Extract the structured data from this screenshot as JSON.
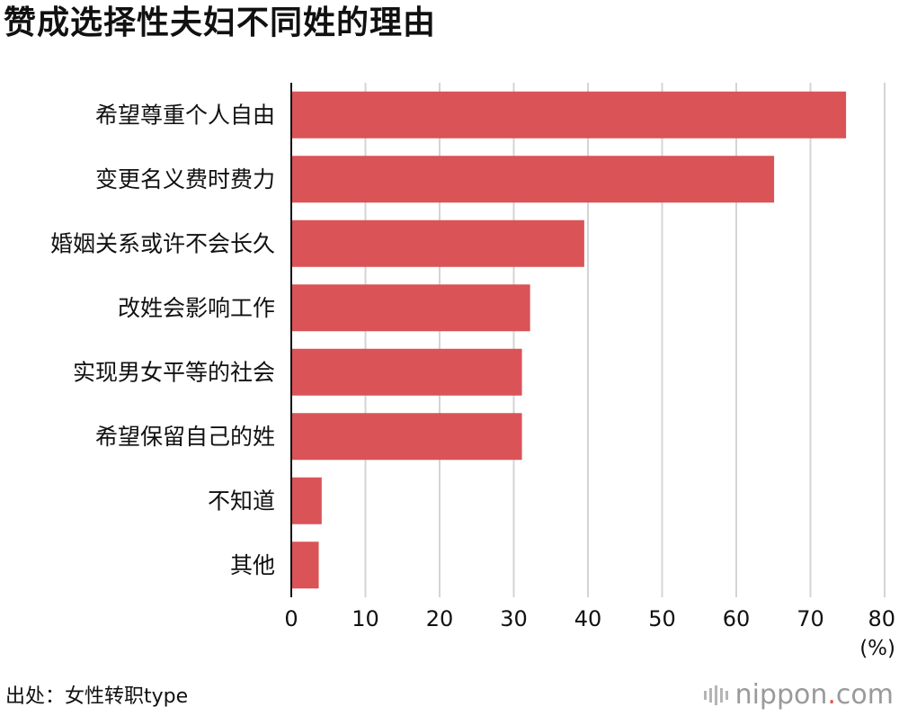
{
  "title": "赞成选择性夫妇不同姓的理由",
  "source": "出处：女性转职type",
  "brand": {
    "name": "nippon",
    "dot": ".",
    "suffix": "com",
    "dot_color": "#e05454"
  },
  "chart_data": {
    "type": "bar",
    "orientation": "horizontal",
    "categories": [
      "希望尊重个人自由",
      "变更名义费时费力",
      "婚姻关系或许不会长久",
      "改姓会影响工作",
      "实现男女平等的社会",
      "希望保留自己的姓",
      "不知道",
      "其他"
    ],
    "values": [
      74.8,
      65.1,
      39.5,
      32.2,
      31.1,
      31.1,
      4.1,
      3.7
    ],
    "xlim": [
      0,
      80
    ],
    "xticks": [
      "0",
      "10",
      "20",
      "30",
      "40",
      "50",
      "60",
      "70",
      "80"
    ],
    "unit_label": "(%)",
    "bar_color": "#d95357",
    "grid": true,
    "legend": "none"
  }
}
